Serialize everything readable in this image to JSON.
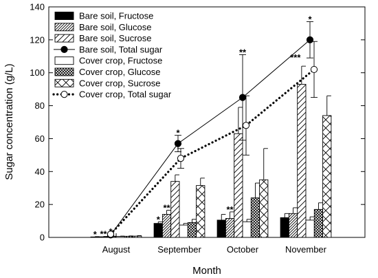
{
  "chart_data": {
    "type": "bar",
    "xlabel": "Month",
    "ylabel": "Sugar concentration (g/L)",
    "ylim": [
      0,
      140
    ],
    "yticks": [
      0,
      20,
      40,
      60,
      80,
      100,
      120,
      140
    ],
    "categories": [
      "August",
      "September",
      "October",
      "November"
    ],
    "legend_position": "top-left",
    "grid": false,
    "bar_series": [
      {
        "name": "Bare soil, Fructose",
        "pattern": "solid",
        "values": [
          0.3,
          8.5,
          10.5,
          12
        ],
        "errors": [
          0.2,
          1,
          3.5,
          2.5
        ]
      },
      {
        "name": "Bare soil, Glucose",
        "pattern": "hatch-dense",
        "values": [
          0.4,
          14,
          11.5,
          14.5
        ],
        "errors": [
          0.2,
          2.5,
          4,
          3.5
        ]
      },
      {
        "name": "Bare soil, Sucrose",
        "pattern": "hatch-sparse",
        "values": [
          0.5,
          34,
          63,
          93
        ],
        "errors": [
          0.2,
          4,
          16,
          11
        ]
      },
      {
        "name": "Cover crop, Fructose",
        "pattern": "empty",
        "values": [
          0.6,
          7.5,
          9.5,
          10.5
        ],
        "errors": [
          0.2,
          1,
          1.5,
          2
        ]
      },
      {
        "name": "Cover crop, Glucose",
        "pattern": "crosshatch",
        "values": [
          0.7,
          9,
          24,
          17
        ],
        "errors": [
          0.2,
          2,
          9,
          4
        ]
      },
      {
        "name": "Cover crop, Sucrose",
        "pattern": "x-pattern",
        "values": [
          0.8,
          31.5,
          35,
          74
        ],
        "errors": [
          0.3,
          4.5,
          19,
          12
        ]
      }
    ],
    "line_series": [
      {
        "name": "Bare soil, Total sugar",
        "style": "solid",
        "marker": "filled-circle",
        "values": [
          1.5,
          57,
          85,
          120
        ],
        "errors": [
          0.5,
          5,
          26,
          11
        ]
      },
      {
        "name": "Cover crop, Total sugar",
        "style": "dotted",
        "marker": "open-circle",
        "values": [
          2,
          48,
          68,
          102
        ],
        "errors": [
          0.5,
          6,
          18,
          17
        ]
      }
    ],
    "significance": [
      {
        "category": "August",
        "series": "Bare soil, Fructose",
        "label": "*"
      },
      {
        "category": "August",
        "series": "Bare soil, Glucose",
        "label": "**"
      },
      {
        "category": "August",
        "series": "Bare soil, Total sugar",
        "label": "*"
      },
      {
        "category": "September",
        "series": "Bare soil, Fructose",
        "label": "*"
      },
      {
        "category": "September",
        "series": "Bare soil, Glucose",
        "label": "**"
      },
      {
        "category": "September",
        "series": "Bare soil, Total sugar",
        "label": "*"
      },
      {
        "category": "October",
        "series": "Bare soil, Glucose",
        "label": "**"
      },
      {
        "category": "October",
        "series": "Bare soil, Total sugar",
        "label": "**"
      },
      {
        "category": "November",
        "series": "Bare soil, Sucrose",
        "label": "***"
      },
      {
        "category": "November",
        "series": "Bare soil, Total sugar",
        "label": "*"
      }
    ]
  }
}
